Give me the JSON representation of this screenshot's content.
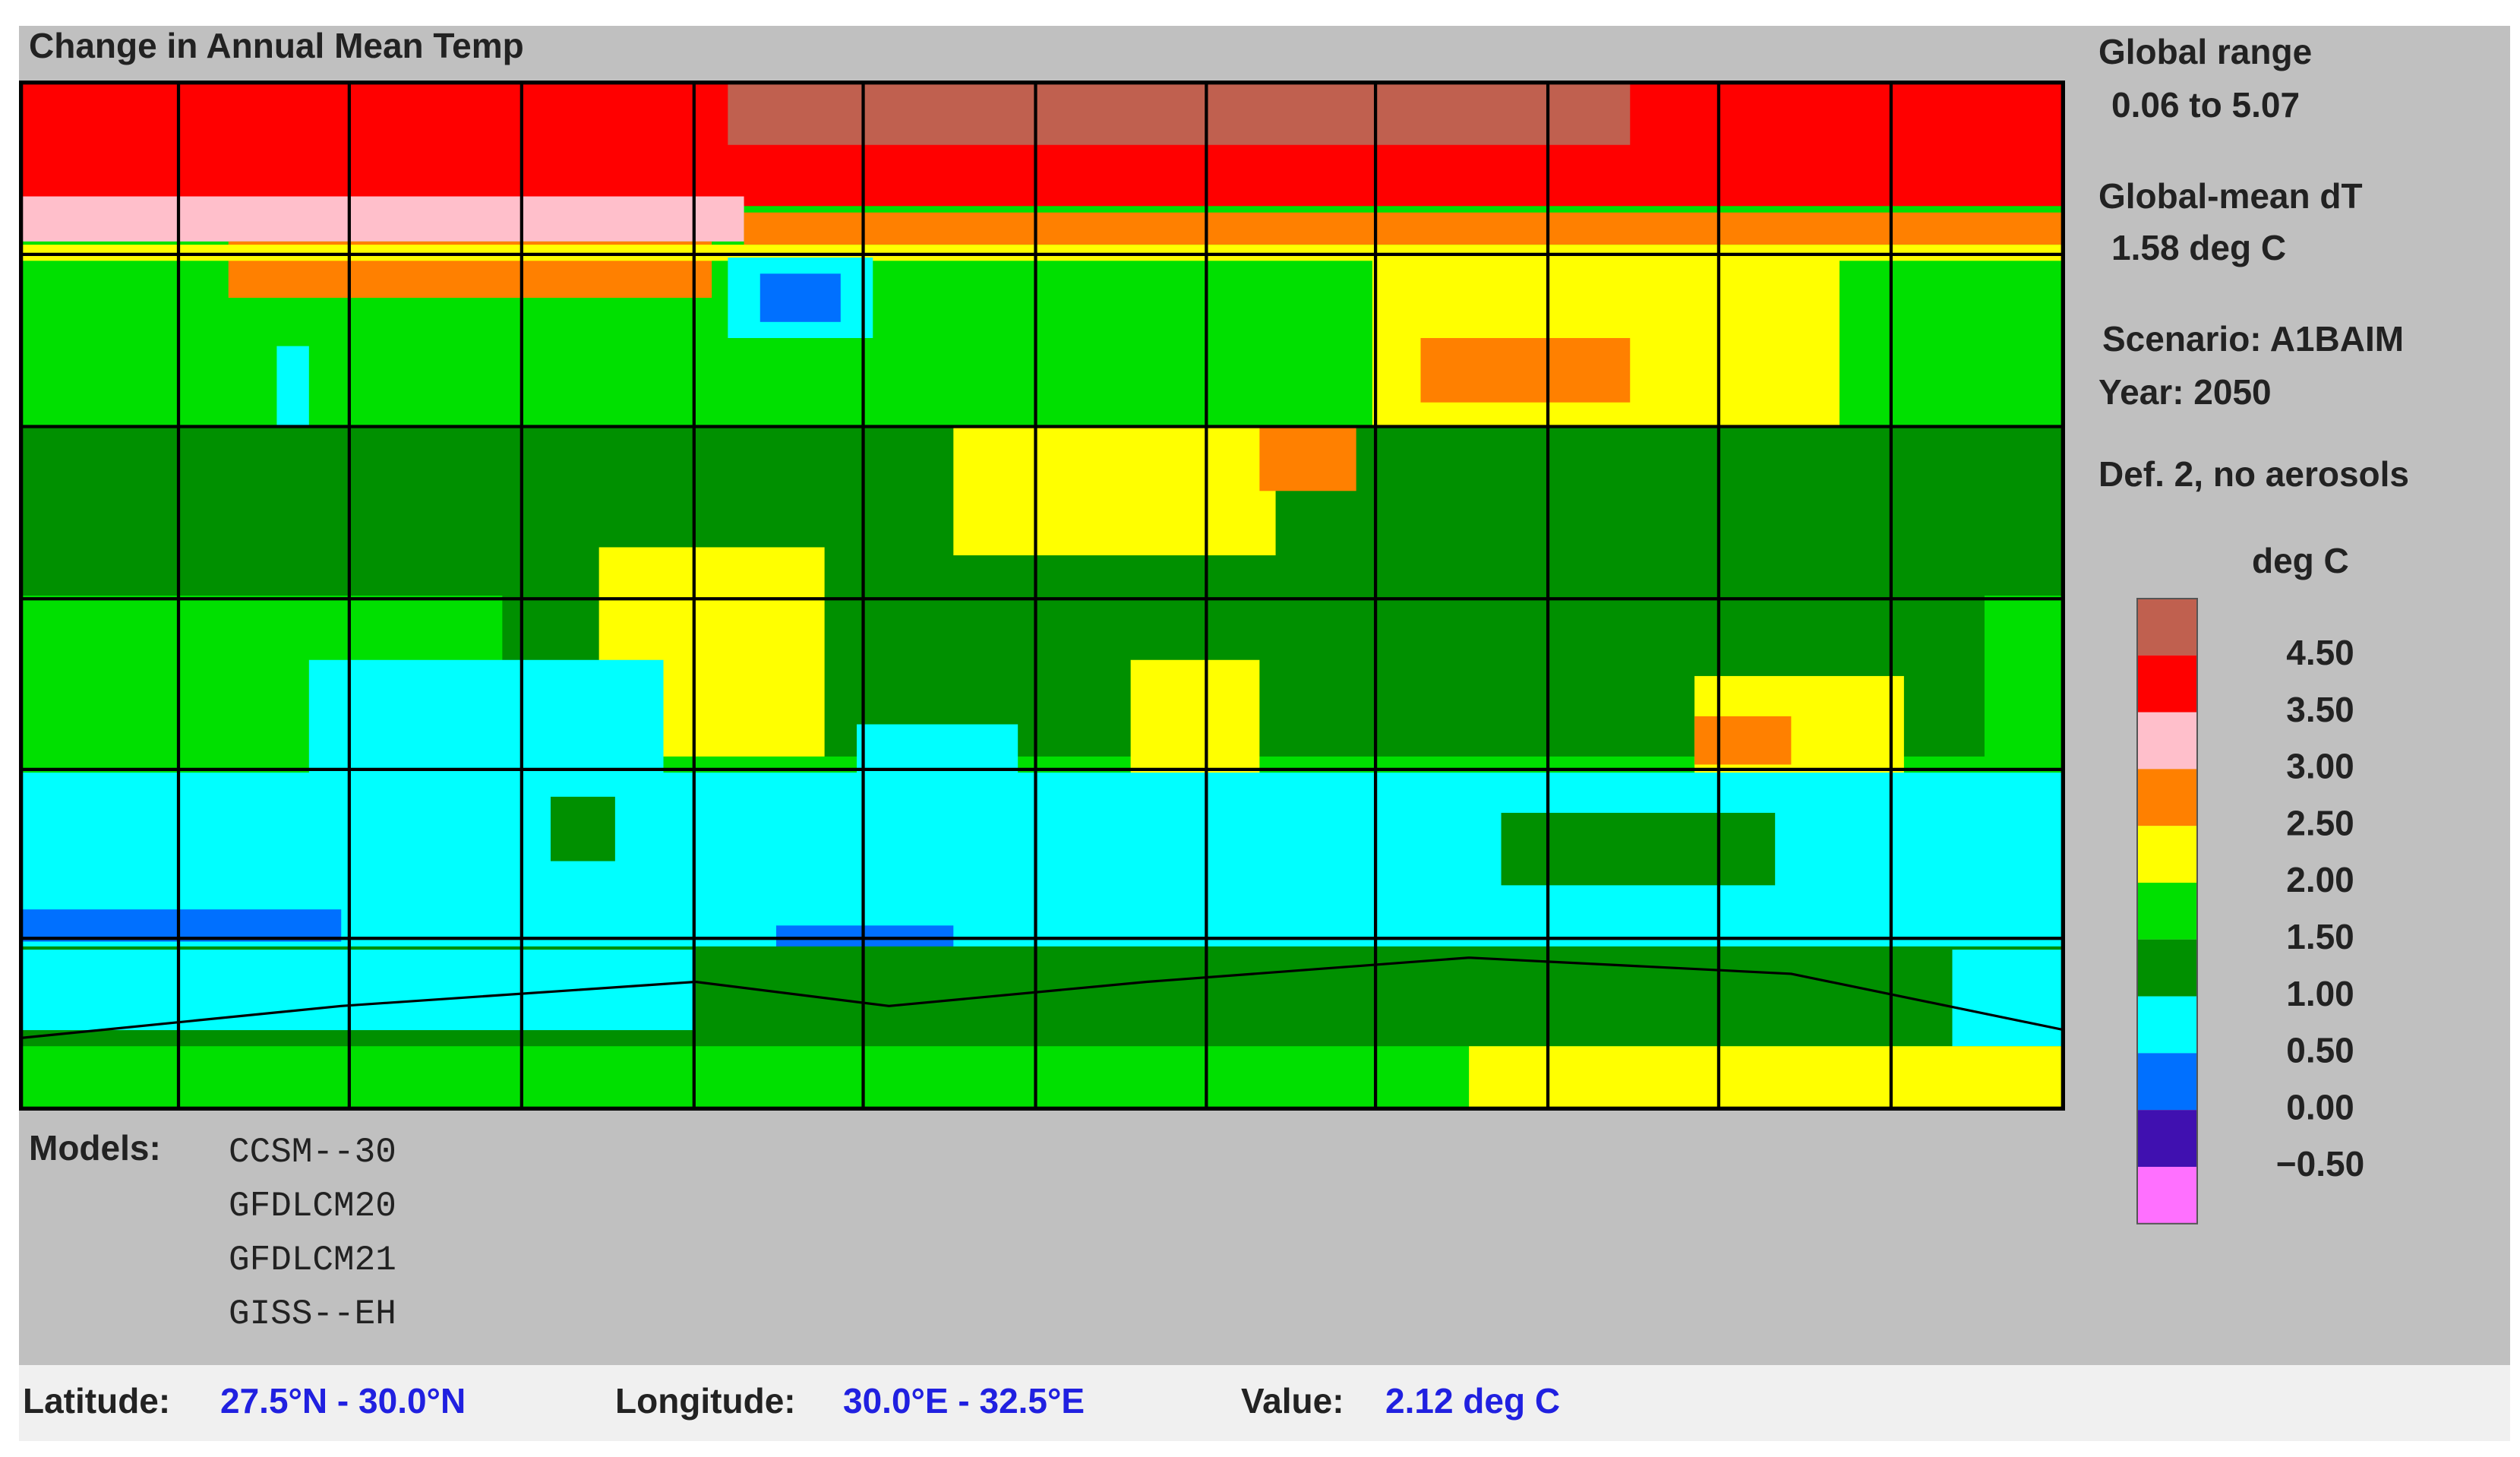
{
  "title": "Change in Annual Mean Temp",
  "info": {
    "global_range_label": "Global range",
    "global_range": "0.06 to 5.07",
    "global_mean_label": "Global-mean dT",
    "global_mean": "1.58 deg C",
    "scenario": "Scenario: A1BAIM",
    "year": "Year: 2050",
    "definition": "Def. 2, no aerosols"
  },
  "legend": {
    "unit": "deg C",
    "colors": [
      "#c0604f",
      "#ff0000",
      "#ffbfcb",
      "#ff8000",
      "#ffff00",
      "#00e000",
      "#009000",
      "#00ffff",
      "#0070ff",
      "#4010b0",
      "#ff70ff"
    ],
    "labels": [
      "4.50",
      "3.50",
      "3.00",
      "2.50",
      "2.00",
      "1.50",
      "1.00",
      "0.50",
      "0.00",
      "−0.50"
    ]
  },
  "models": {
    "label": "Models:",
    "list": [
      "CCSM--30",
      "GFDLCM20",
      "GFDLCM21",
      "GISS--EH"
    ]
  },
  "status": {
    "latitude_label": "Latitude:",
    "latitude": "27.5°N - 30.0°N",
    "longitude_label": "Longitude:",
    "longitude": "30.0°E - 32.5°E",
    "value_label": "Value:",
    "value": "2.12 deg C"
  }
}
